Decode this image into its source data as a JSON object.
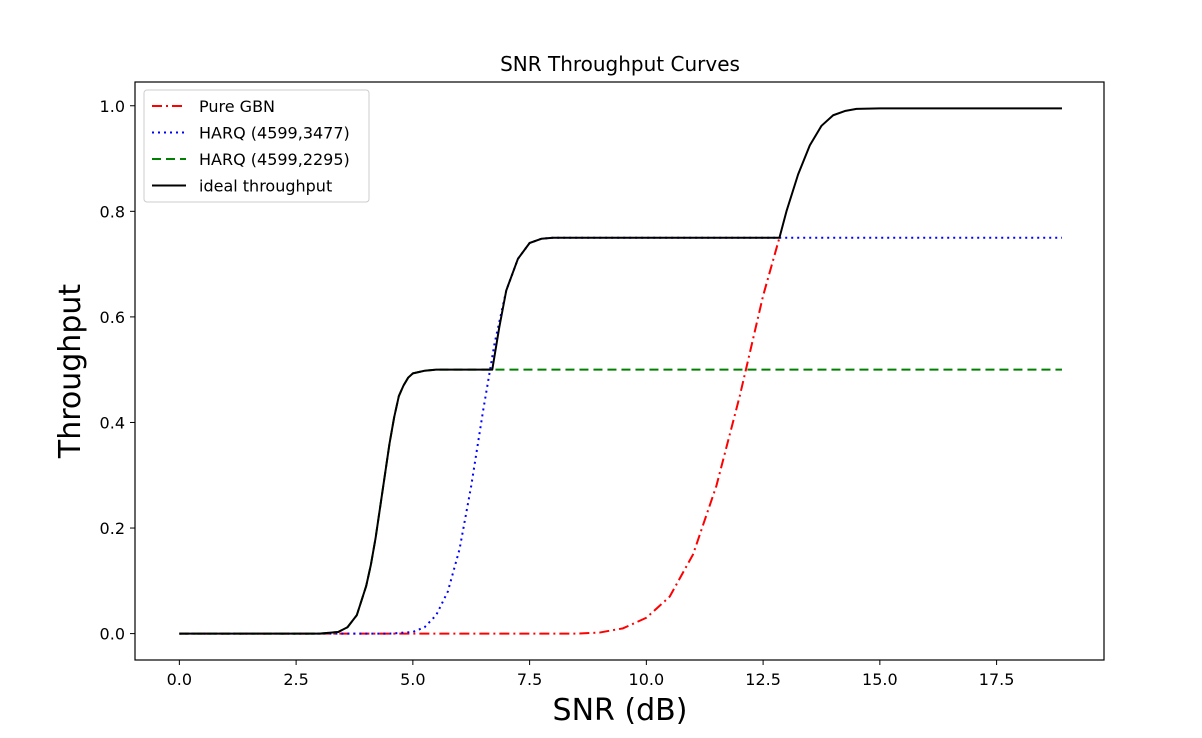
{
  "chart_data": {
    "type": "line",
    "title": "SNR Throughput Curves",
    "xlabel": "SNR (dB)",
    "ylabel": "Throughput",
    "xlim": [
      -0.95,
      19.8
    ],
    "ylim": [
      -0.05,
      1.045
    ],
    "xticks": [
      0.0,
      2.5,
      5.0,
      7.5,
      10.0,
      12.5,
      15.0,
      17.5
    ],
    "xtick_labels": [
      "0.0",
      "2.5",
      "5.0",
      "7.5",
      "10.0",
      "12.5",
      "15.0",
      "17.5"
    ],
    "yticks": [
      0.0,
      0.2,
      0.4,
      0.6,
      0.8,
      1.0
    ],
    "ytick_labels": [
      "0.0",
      "0.2",
      "0.4",
      "0.6",
      "0.8",
      "1.0"
    ],
    "grid": false,
    "legend_position": "upper-left",
    "series": [
      {
        "name": "Pure GBN",
        "color": "#ff0000",
        "style": "dashdot",
        "x": [
          0.0,
          1.0,
          2.0,
          3.0,
          4.0,
          5.0,
          6.0,
          7.0,
          8.0,
          8.5,
          9.0,
          9.5,
          10.0,
          10.5,
          11.0,
          11.5,
          12.0,
          12.5,
          12.85
        ],
        "y": [
          0.0,
          0.0,
          0.0,
          0.0,
          0.0,
          0.0,
          0.0,
          0.0,
          0.0,
          0.0,
          0.002,
          0.01,
          0.03,
          0.07,
          0.15,
          0.28,
          0.45,
          0.64,
          0.75
        ]
      },
      {
        "name": "HARQ (4599,3477)",
        "color": "#0000ff",
        "style": "dotted",
        "x": [
          0.0,
          1.0,
          2.0,
          3.0,
          4.0,
          4.5,
          5.0,
          5.25,
          5.5,
          5.75,
          6.0,
          6.25,
          6.5,
          6.75,
          7.0,
          7.25,
          7.5,
          7.75,
          8.0,
          9.0,
          10.0,
          11.0,
          12.0,
          13.0,
          14.0,
          15.0,
          16.0,
          17.0,
          18.0,
          18.9
        ],
        "y": [
          0.0,
          0.0,
          0.0,
          0.0,
          0.0,
          0.0,
          0.003,
          0.012,
          0.035,
          0.08,
          0.16,
          0.28,
          0.42,
          0.55,
          0.65,
          0.71,
          0.74,
          0.748,
          0.75,
          0.75,
          0.75,
          0.75,
          0.75,
          0.75,
          0.75,
          0.75,
          0.75,
          0.75,
          0.75,
          0.75
        ]
      },
      {
        "name": "HARQ (4599,2295)",
        "color": "#008000",
        "style": "dashed",
        "x": [
          0.0,
          1.0,
          2.0,
          3.0,
          3.4,
          3.6,
          3.8,
          4.0,
          4.1,
          4.2,
          4.3,
          4.4,
          4.5,
          4.6,
          4.7,
          4.8,
          4.9,
          5.0,
          5.25,
          5.5,
          6.0,
          7.0,
          8.0,
          10.0,
          12.0,
          14.0,
          16.0,
          18.0,
          18.9
        ],
        "y": [
          0.0,
          0.0,
          0.0,
          0.0,
          0.003,
          0.012,
          0.035,
          0.09,
          0.13,
          0.18,
          0.24,
          0.3,
          0.36,
          0.41,
          0.45,
          0.47,
          0.485,
          0.493,
          0.498,
          0.5,
          0.5,
          0.5,
          0.5,
          0.5,
          0.5,
          0.5,
          0.5,
          0.5,
          0.5
        ]
      },
      {
        "name": "ideal throughput",
        "color": "#000000",
        "style": "solid",
        "x": [
          0.0,
          1.0,
          2.0,
          3.0,
          3.4,
          3.6,
          3.8,
          4.0,
          4.1,
          4.2,
          4.3,
          4.4,
          4.5,
          4.6,
          4.7,
          4.8,
          4.9,
          5.0,
          5.25,
          5.5,
          6.0,
          6.5,
          6.7,
          6.85,
          7.0,
          7.25,
          7.5,
          7.75,
          8.0,
          9.0,
          10.0,
          11.0,
          12.0,
          12.5,
          12.85,
          13.0,
          13.25,
          13.5,
          13.75,
          14.0,
          14.25,
          14.5,
          15.0,
          16.0,
          17.0,
          18.0,
          18.9
        ],
        "y": [
          0.0,
          0.0,
          0.0,
          0.0,
          0.003,
          0.012,
          0.035,
          0.09,
          0.13,
          0.18,
          0.24,
          0.3,
          0.36,
          0.41,
          0.45,
          0.47,
          0.485,
          0.493,
          0.498,
          0.5,
          0.5,
          0.5,
          0.5,
          0.58,
          0.65,
          0.71,
          0.74,
          0.748,
          0.75,
          0.75,
          0.75,
          0.75,
          0.75,
          0.75,
          0.75,
          0.8,
          0.87,
          0.925,
          0.962,
          0.982,
          0.99,
          0.994,
          0.995,
          0.995,
          0.995,
          0.995,
          0.995
        ]
      }
    ]
  }
}
